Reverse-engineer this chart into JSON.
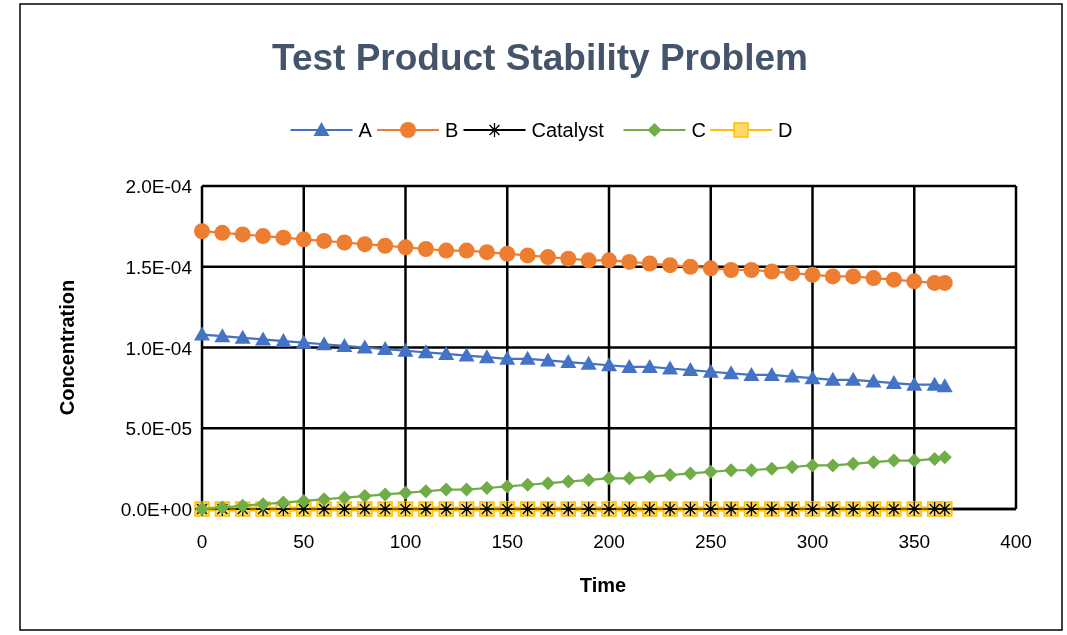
{
  "chart_data": {
    "type": "line",
    "title": "Test Product Stability Problem",
    "xlabel": "Time",
    "ylabel": "Concentration",
    "x": [
      0,
      10,
      20,
      30,
      40,
      50,
      60,
      70,
      80,
      90,
      100,
      110,
      120,
      130,
      140,
      150,
      160,
      170,
      180,
      190,
      200,
      210,
      220,
      230,
      240,
      250,
      260,
      270,
      280,
      290,
      300,
      310,
      320,
      330,
      340,
      350,
      360,
      365
    ],
    "series": [
      {
        "name": "A",
        "color": "#4472c4",
        "marker": "triangle",
        "values": [
          0.000108,
          0.000107,
          0.000106,
          0.000105,
          0.000104,
          0.000103,
          0.000102,
          0.000101,
          0.0001,
          9.9e-05,
          9.8e-05,
          9.7e-05,
          9.6e-05,
          9.5e-05,
          9.4e-05,
          9.3e-05,
          9.3e-05,
          9.2e-05,
          9.1e-05,
          9e-05,
          8.9e-05,
          8.8e-05,
          8.8e-05,
          8.7e-05,
          8.6e-05,
          8.5e-05,
          8.4e-05,
          8.3e-05,
          8.3e-05,
          8.2e-05,
          8.1e-05,
          8e-05,
          8e-05,
          7.9e-05,
          7.8e-05,
          7.7e-05,
          7.7e-05,
          7.6e-05
        ]
      },
      {
        "name": "B",
        "color": "#ed7d31",
        "marker": "circle",
        "values": [
          0.000172,
          0.000171,
          0.00017,
          0.000169,
          0.000168,
          0.000167,
          0.000166,
          0.000165,
          0.000164,
          0.000163,
          0.000162,
          0.000161,
          0.00016,
          0.00016,
          0.000159,
          0.000158,
          0.000157,
          0.000156,
          0.000155,
          0.000154,
          0.000154,
          0.000153,
          0.000152,
          0.000151,
          0.00015,
          0.000149,
          0.000148,
          0.000148,
          0.000147,
          0.000146,
          0.000145,
          0.000144,
          0.000144,
          0.000143,
          0.000142,
          0.000141,
          0.00014,
          0.00014
        ]
      },
      {
        "name": "Catalyst",
        "color": "#000000",
        "marker": "cross",
        "values": [
          0,
          0,
          0,
          0,
          0,
          0,
          0,
          0,
          0,
          0,
          0,
          0,
          0,
          0,
          0,
          0,
          0,
          0,
          0,
          0,
          0,
          0,
          0,
          0,
          0,
          0,
          0,
          0,
          0,
          0,
          0,
          0,
          0,
          0,
          0,
          0,
          0,
          0
        ]
      },
      {
        "name": "C",
        "color": "#70ad47",
        "marker": "diamond",
        "values": [
          0,
          1e-06,
          2e-06,
          3e-06,
          4e-06,
          5e-06,
          6e-06,
          7e-06,
          8e-06,
          9e-06,
          1e-05,
          1.1e-05,
          1.2e-05,
          1.2e-05,
          1.3e-05,
          1.4e-05,
          1.5e-05,
          1.6e-05,
          1.7e-05,
          1.8e-05,
          1.9e-05,
          1.9e-05,
          2e-05,
          2.1e-05,
          2.2e-05,
          2.3e-05,
          2.4e-05,
          2.4e-05,
          2.5e-05,
          2.6e-05,
          2.7e-05,
          2.7e-05,
          2.8e-05,
          2.9e-05,
          3e-05,
          3e-05,
          3.1e-05,
          3.2e-05
        ]
      },
      {
        "name": "D",
        "color": "#ffc000",
        "marker": "square",
        "values": [
          0,
          0,
          0,
          0,
          0,
          0,
          0,
          0,
          0,
          0,
          0,
          0,
          0,
          0,
          0,
          0,
          0,
          0,
          0,
          0,
          0,
          0,
          0,
          0,
          0,
          0,
          0,
          0,
          0,
          0,
          0,
          0,
          0,
          0,
          0,
          0,
          0,
          0
        ]
      }
    ],
    "xlim": [
      0,
      400
    ],
    "xticks": [
      0,
      50,
      100,
      150,
      200,
      250,
      300,
      350,
      400
    ],
    "ylim": [
      0,
      0.0002
    ],
    "yticks": [
      {
        "value": 0,
        "label": "0.0E+00"
      },
      {
        "value": 5e-05,
        "label": "5.0E-05"
      },
      {
        "value": 0.0001,
        "label": "1.0E-04"
      },
      {
        "value": 0.00015,
        "label": "1.5E-04"
      },
      {
        "value": 0.0002,
        "label": "2.0E-04"
      }
    ],
    "grid": true,
    "legend": "top"
  }
}
